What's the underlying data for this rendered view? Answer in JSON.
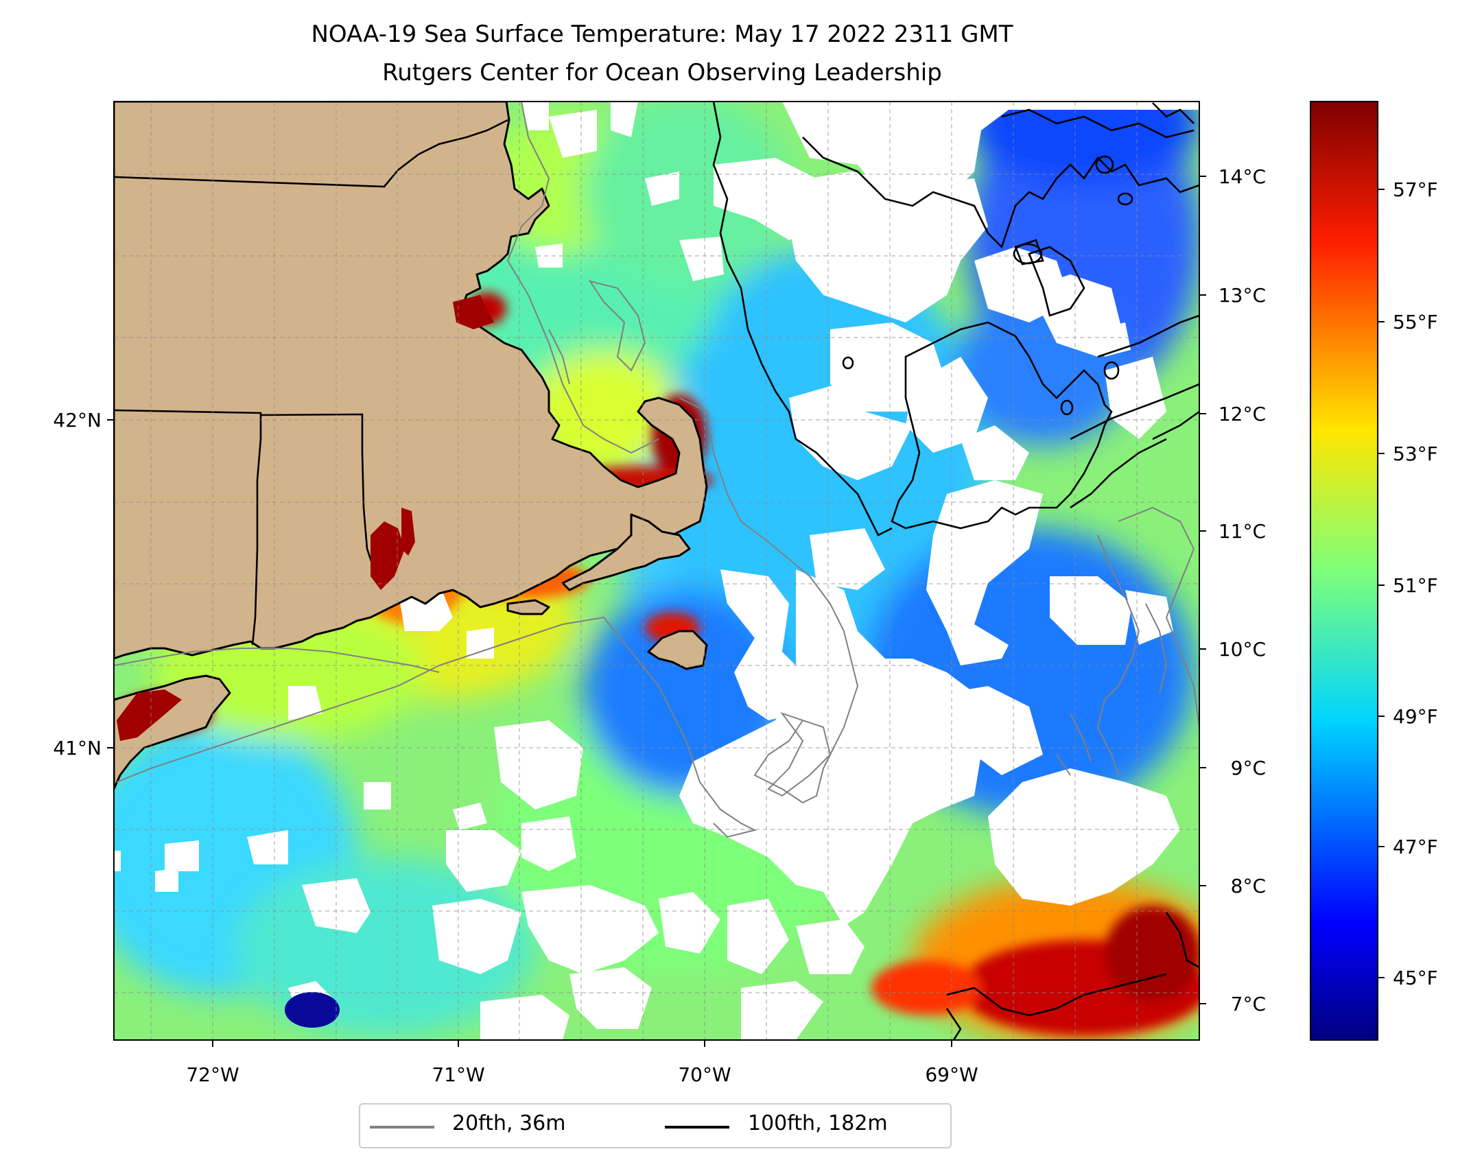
{
  "title": "NOAA-19 Sea Surface Temperature: May 17 2022 2311 GMT",
  "subtitle": "Rutgers Center for Ocean Observing Leadership",
  "map": {
    "region": "Southern New England / Cape Cod / Georges Bank",
    "lon_labels": [
      "72°W",
      "71°W",
      "70°W",
      "69°W"
    ],
    "lat_labels": [
      "42°N",
      "41°N"
    ],
    "grid": true,
    "colors": {
      "land": "#d2b48c",
      "no_data": "#ffffff",
      "contour_20fth": "#808080",
      "contour_100fth": "#000000"
    }
  },
  "colorbar": {
    "celsius_ticks": [
      "14°C",
      "13°C",
      "12°C",
      "11°C",
      "10°C",
      "9°C",
      "8°C",
      "7°C"
    ],
    "fahrenheit_ticks": [
      "57°F",
      "55°F",
      "53°F",
      "51°F",
      "49°F",
      "47°F",
      "45°F"
    ],
    "colormap": "jet",
    "range_c": [
      6.7,
      14.7
    ]
  },
  "legend": {
    "items": [
      {
        "label": "20fth, 36m",
        "color": "#808080"
      },
      {
        "label": "100fth, 182m",
        "color": "#000000"
      }
    ],
    "placement": "bottom-center"
  }
}
